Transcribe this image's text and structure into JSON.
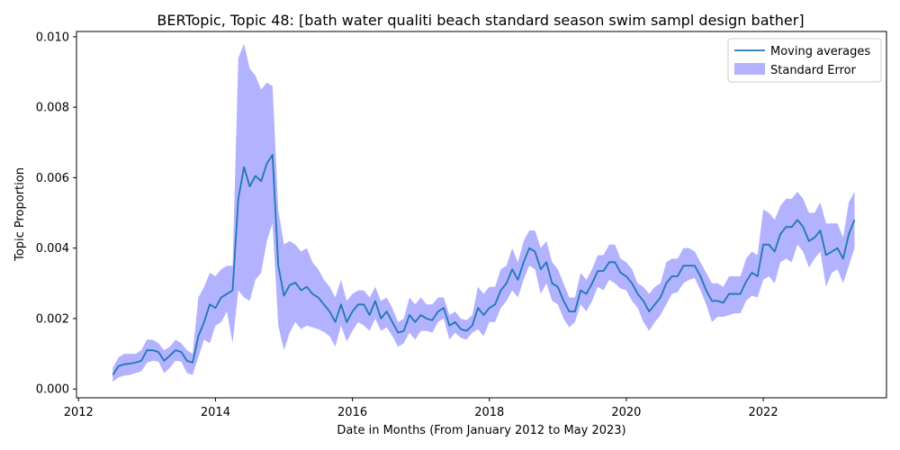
{
  "chart_data": {
    "type": "line",
    "title": "BERTopic, Topic 48: [bath water qualiti beach standard season swim sampl design bather]",
    "xlabel": "Date in Months (From January 2012 to May 2023)",
    "ylabel": "Topic Proportion",
    "xlim": [
      2011.97,
      2023.8
    ],
    "ylim": [
      -0.00025,
      0.01015
    ],
    "xticks": [
      2012,
      2014,
      2016,
      2018,
      2020,
      2022
    ],
    "xtick_labels": [
      "2012",
      "2014",
      "2016",
      "2018",
      "2020",
      "2022"
    ],
    "yticks": [
      0.0,
      0.002,
      0.004,
      0.006,
      0.008,
      0.01
    ],
    "ytick_labels": [
      "0.000",
      "0.002",
      "0.004",
      "0.006",
      "0.008",
      "0.010"
    ],
    "grid": false,
    "legend_position": "top-right",
    "series": [
      {
        "name": "Moving averages",
        "color": "#1f77b4",
        "kind": "line",
        "x": [
          "2012-07",
          "2012-08",
          "2012-09",
          "2012-10",
          "2012-11",
          "2012-12",
          "2013-01",
          "2013-02",
          "2013-03",
          "2013-04",
          "2013-05",
          "2013-06",
          "2013-07",
          "2013-08",
          "2013-09",
          "2013-10",
          "2013-11",
          "2013-12",
          "2014-01",
          "2014-02",
          "2014-03",
          "2014-04",
          "2014-05",
          "2014-06",
          "2014-07",
          "2014-08",
          "2014-09",
          "2014-10",
          "2014-11",
          "2014-12",
          "2015-01",
          "2015-02",
          "2015-03",
          "2015-04",
          "2015-05",
          "2015-06",
          "2015-07",
          "2015-08",
          "2015-09",
          "2015-10",
          "2015-11",
          "2015-12",
          "2016-01",
          "2016-02",
          "2016-03",
          "2016-04",
          "2016-05",
          "2016-06",
          "2016-07",
          "2016-08",
          "2016-09",
          "2016-10",
          "2016-11",
          "2016-12",
          "2017-01",
          "2017-02",
          "2017-03",
          "2017-04",
          "2017-05",
          "2017-06",
          "2017-07",
          "2017-08",
          "2017-09",
          "2017-10",
          "2017-11",
          "2017-12",
          "2018-01",
          "2018-02",
          "2018-03",
          "2018-04",
          "2018-05",
          "2018-06",
          "2018-07",
          "2018-08",
          "2018-09",
          "2018-10",
          "2018-11",
          "2018-12",
          "2019-01",
          "2019-02",
          "2019-03",
          "2019-04",
          "2019-05",
          "2019-06",
          "2019-07",
          "2019-08",
          "2019-09",
          "2019-10",
          "2019-11",
          "2019-12",
          "2020-01",
          "2020-02",
          "2020-03",
          "2020-04",
          "2020-05",
          "2020-06",
          "2020-07",
          "2020-08",
          "2020-09",
          "2020-10",
          "2020-11",
          "2020-12",
          "2021-01",
          "2021-02",
          "2021-03",
          "2021-04",
          "2021-05",
          "2021-06",
          "2021-07",
          "2021-08",
          "2021-09",
          "2021-10",
          "2021-11",
          "2021-12",
          "2022-01",
          "2022-02",
          "2022-03",
          "2022-04",
          "2022-05",
          "2022-06",
          "2022-07",
          "2022-08",
          "2022-09",
          "2022-10",
          "2022-11",
          "2022-12",
          "2023-01",
          "2023-02",
          "2023-03",
          "2023-04",
          "2023-05"
        ],
        "values": [
          0.0004,
          0.00065,
          0.0007,
          0.00072,
          0.00075,
          0.0008,
          0.0011,
          0.0011,
          0.00105,
          0.0008,
          0.00095,
          0.0011,
          0.00105,
          0.0008,
          0.00075,
          0.0015,
          0.0019,
          0.0024,
          0.0023,
          0.0026,
          0.0027,
          0.0028,
          0.0054,
          0.0063,
          0.00575,
          0.00605,
          0.0059,
          0.0064,
          0.00665,
          0.0035,
          0.00265,
          0.00295,
          0.00302,
          0.0028,
          0.0029,
          0.0027,
          0.0026,
          0.0024,
          0.0022,
          0.0019,
          0.0024,
          0.0019,
          0.0022,
          0.0024,
          0.0024,
          0.0021,
          0.0025,
          0.002,
          0.0022,
          0.0019,
          0.0016,
          0.00165,
          0.0021,
          0.0019,
          0.0021,
          0.002,
          0.00195,
          0.0022,
          0.0023,
          0.0018,
          0.0019,
          0.0017,
          0.00165,
          0.0018,
          0.0023,
          0.0021,
          0.0023,
          0.0024,
          0.0028,
          0.003,
          0.0034,
          0.0031,
          0.0036,
          0.004,
          0.0039,
          0.0034,
          0.0036,
          0.003,
          0.0029,
          0.0025,
          0.0022,
          0.0022,
          0.0028,
          0.0027,
          0.003,
          0.00335,
          0.00335,
          0.0036,
          0.0036,
          0.0033,
          0.0032,
          0.003,
          0.0027,
          0.0025,
          0.0022,
          0.0024,
          0.0026,
          0.003,
          0.0032,
          0.0032,
          0.0035,
          0.0035,
          0.0035,
          0.0032,
          0.0028,
          0.0025,
          0.0025,
          0.00245,
          0.0027,
          0.0027,
          0.0027,
          0.00305,
          0.0033,
          0.0032,
          0.0041,
          0.0041,
          0.0039,
          0.0044,
          0.0046,
          0.0046,
          0.0048,
          0.0046,
          0.0042,
          0.0043,
          0.0045,
          0.0038,
          0.0039,
          0.004,
          0.0037,
          0.0044,
          0.0048
        ]
      },
      {
        "name": "Standard Error",
        "color": "#0000ff",
        "kind": "band",
        "lower": [
          0.0002,
          0.00033,
          0.00038,
          0.0004,
          0.00045,
          0.0005,
          0.00075,
          0.0008,
          0.00078,
          0.00045,
          0.0006,
          0.0008,
          0.00078,
          0.00045,
          0.0004,
          0.0009,
          0.0014,
          0.0013,
          0.0018,
          0.0019,
          0.0022,
          0.0013,
          0.0028,
          0.0026,
          0.0025,
          0.0031,
          0.0033,
          0.0042,
          0.0047,
          0.0018,
          0.0011,
          0.0016,
          0.0019,
          0.0017,
          0.0018,
          0.00175,
          0.0017,
          0.00162,
          0.0015,
          0.0012,
          0.0018,
          0.00135,
          0.00165,
          0.0019,
          0.0018,
          0.00165,
          0.002,
          0.00165,
          0.00175,
          0.0015,
          0.0012,
          0.0013,
          0.0016,
          0.0014,
          0.00165,
          0.00165,
          0.0016,
          0.0019,
          0.002,
          0.0014,
          0.0016,
          0.00145,
          0.0014,
          0.0016,
          0.0017,
          0.0015,
          0.0019,
          0.0019,
          0.0023,
          0.0025,
          0.0028,
          0.0026,
          0.0031,
          0.0035,
          0.0034,
          0.0027,
          0.003,
          0.0025,
          0.0024,
          0.002,
          0.00175,
          0.0019,
          0.0024,
          0.0022,
          0.0025,
          0.0029,
          0.0028,
          0.0031,
          0.003,
          0.00285,
          0.0028,
          0.0025,
          0.0023,
          0.0019,
          0.00165,
          0.0019,
          0.0021,
          0.0024,
          0.0027,
          0.00275,
          0.003,
          0.0031,
          0.00315,
          0.0028,
          0.0024,
          0.0019,
          0.00205,
          0.00205,
          0.0021,
          0.00215,
          0.00215,
          0.0025,
          0.00265,
          0.0026,
          0.0031,
          0.0032,
          0.003,
          0.0036,
          0.0037,
          0.0036,
          0.0041,
          0.0039,
          0.00345,
          0.0037,
          0.0039,
          0.0029,
          0.0033,
          0.0034,
          0.003,
          0.0035,
          0.004
        ],
        "upper": [
          0.0006,
          0.0009,
          0.001,
          0.001,
          0.001,
          0.0011,
          0.0014,
          0.0014,
          0.0013,
          0.0011,
          0.0012,
          0.0014,
          0.0013,
          0.0011,
          0.001,
          0.0026,
          0.0029,
          0.0033,
          0.0032,
          0.0034,
          0.0035,
          0.0035,
          0.0094,
          0.0098,
          0.0091,
          0.0089,
          0.0085,
          0.0087,
          0.0086,
          0.0051,
          0.0041,
          0.0042,
          0.0041,
          0.0039,
          0.004,
          0.0036,
          0.0034,
          0.0031,
          0.0029,
          0.0026,
          0.0031,
          0.0025,
          0.0027,
          0.0028,
          0.0028,
          0.0026,
          0.0029,
          0.0025,
          0.0026,
          0.0023,
          0.0019,
          0.002,
          0.0026,
          0.0024,
          0.0026,
          0.0024,
          0.0024,
          0.0026,
          0.0026,
          0.0021,
          0.0022,
          0.002,
          0.00195,
          0.0021,
          0.0029,
          0.0027,
          0.0029,
          0.0029,
          0.0034,
          0.0035,
          0.004,
          0.0036,
          0.0042,
          0.0045,
          0.0045,
          0.004,
          0.0042,
          0.0036,
          0.0034,
          0.003,
          0.0026,
          0.0026,
          0.0033,
          0.0031,
          0.0034,
          0.0038,
          0.0038,
          0.0041,
          0.0041,
          0.0037,
          0.0036,
          0.0034,
          0.003,
          0.0029,
          0.0027,
          0.0029,
          0.003,
          0.0036,
          0.0037,
          0.0037,
          0.004,
          0.004,
          0.0039,
          0.0036,
          0.0033,
          0.003,
          0.003,
          0.0029,
          0.0032,
          0.0032,
          0.0032,
          0.0037,
          0.0039,
          0.0038,
          0.0051,
          0.005,
          0.0048,
          0.0052,
          0.0054,
          0.0054,
          0.0056,
          0.0054,
          0.005,
          0.005,
          0.0053,
          0.0047,
          0.0047,
          0.0047,
          0.0043,
          0.0053,
          0.0056
        ]
      }
    ]
  }
}
